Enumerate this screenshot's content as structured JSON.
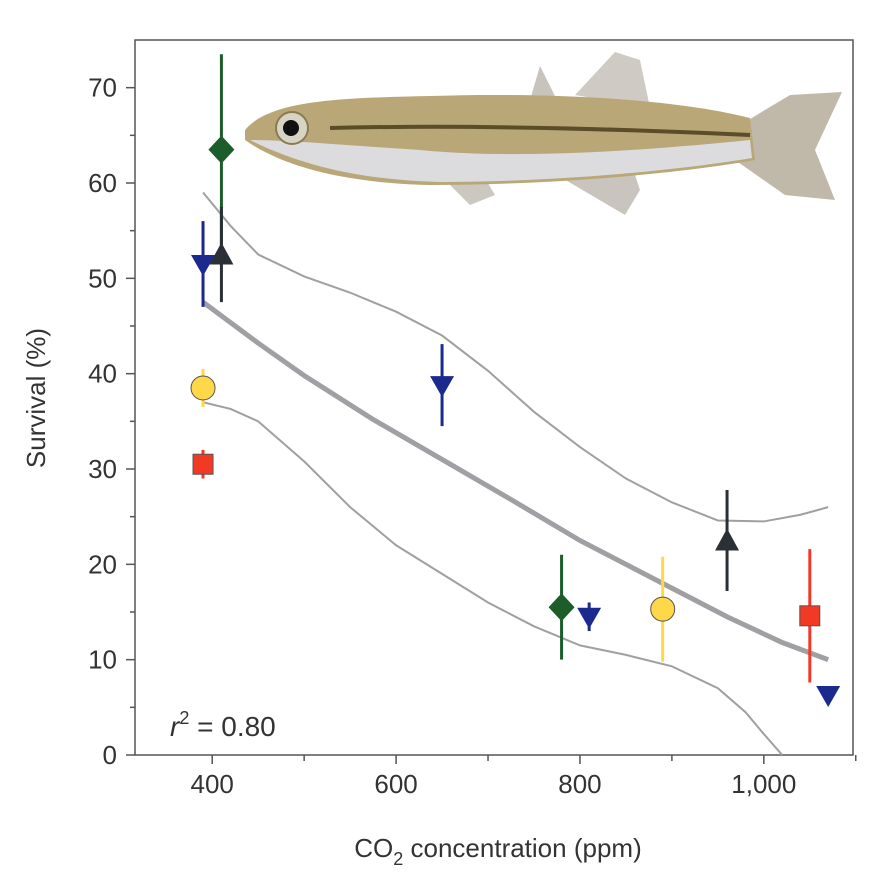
{
  "chart_data": {
    "type": "scatter",
    "x_label": {
      "main": "CO",
      "sub": "2",
      "rest": " concentration (ppm)"
    },
    "y_label": "Survival (%)",
    "annotation": {
      "var": "r",
      "sup": "2",
      "rest": " = 0.80"
    },
    "xlim": [
      316,
      1097
    ],
    "ylim": [
      0,
      75
    ],
    "xticks": [
      400,
      600,
      800,
      {
        "value": 1000,
        "label": "1,000"
      }
    ],
    "xminorticks": [
      500,
      700,
      900,
      1100
    ],
    "yticks": [
      0,
      10,
      20,
      30,
      40,
      50,
      60,
      70
    ],
    "yminorticks": [
      5,
      15,
      25,
      35,
      45,
      55,
      65
    ],
    "series": [
      {
        "marker": "diamond",
        "color": "#1b5e2b",
        "x": [
          410,
          780
        ],
        "values": [
          63.5,
          15.5
        ],
        "errors": [
          10,
          5.5
        ]
      },
      {
        "marker": "triangle-down",
        "color": "#1c2a8e",
        "x": [
          390,
          650,
          810,
          1070
        ],
        "values": [
          51.5,
          38.8,
          14.5,
          6.3
        ],
        "errors": [
          4.5,
          4.3,
          1.5,
          0.5
        ]
      },
      {
        "marker": "triangle-up",
        "color": "#2b2f36",
        "x": [
          410,
          960
        ],
        "values": [
          52.5,
          22.5
        ],
        "errors": [
          5,
          5.3
        ]
      },
      {
        "marker": "circle",
        "color": "#ffd84a",
        "x": [
          390,
          890
        ],
        "values": [
          38.5,
          15.3
        ],
        "errors": [
          2,
          5.5
        ]
      },
      {
        "marker": "square",
        "color": "#f03a24",
        "x": [
          390,
          1050
        ],
        "values": [
          30.5,
          14.6
        ],
        "errors": [
          1.5,
          7
        ]
      }
    ],
    "fit": {
      "color": "#a0a0a4",
      "x": [
        390,
        450,
        500,
        575,
        650,
        725,
        800,
        880,
        960,
        1020,
        1070
      ],
      "values": [
        47.5,
        43.2,
        39.8,
        35.2,
        31,
        26.8,
        22.5,
        18.5,
        14.5,
        11.8,
        10
      ]
    },
    "upper_ci": {
      "color": "#a0a0a4",
      "x": [
        390,
        420,
        450,
        500,
        550,
        600,
        650,
        700,
        750,
        800,
        850,
        900,
        950,
        1000,
        1040,
        1070
      ],
      "values": [
        59,
        55.5,
        52.5,
        50.2,
        48.5,
        46.5,
        44,
        40.3,
        36,
        32.3,
        29,
        26.5,
        24.6,
        24.5,
        25.2,
        26
      ]
    },
    "lower_ci": {
      "color": "#a0a0a4",
      "x": [
        390,
        420,
        450,
        500,
        550,
        600,
        650,
        700,
        750,
        800,
        850,
        900,
        950,
        980,
        1000,
        1020
      ],
      "values": [
        37,
        36.3,
        35,
        30.8,
        26,
        22,
        19,
        16,
        13.5,
        11.5,
        10.5,
        9.3,
        7,
        4.5,
        2.2,
        0
      ]
    }
  }
}
